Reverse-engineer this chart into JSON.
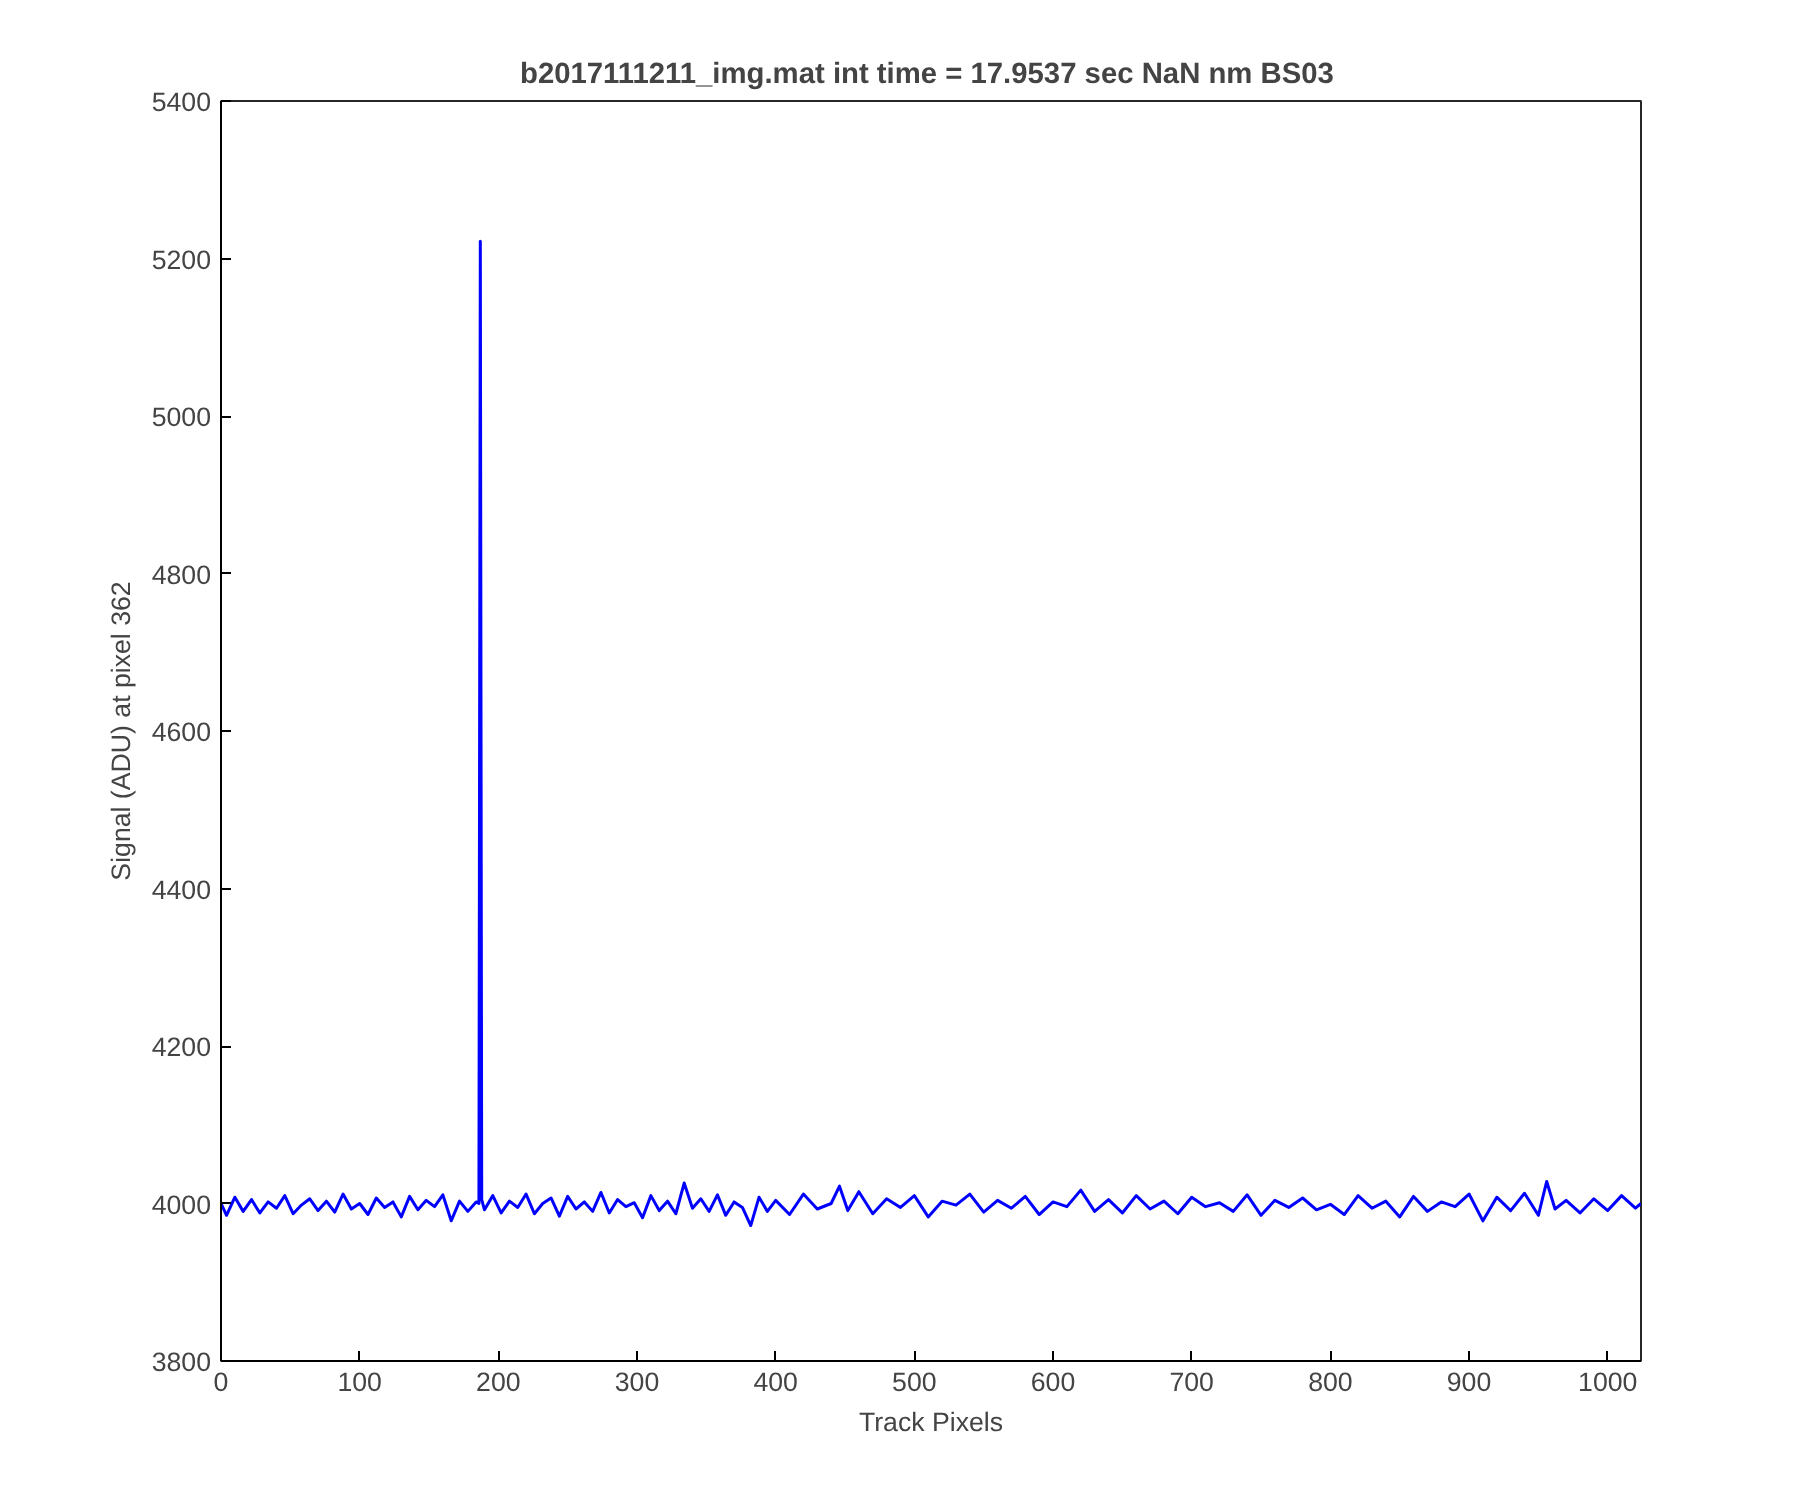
{
  "chart_data": {
    "type": "line",
    "title": "b2017111211_img.mat int time = 17.9537 sec  NaN nm BS03",
    "xlabel": "Track Pixels",
    "ylabel": "Signal (ADU) at pixel 362",
    "xlim": [
      0,
      1024
    ],
    "ylim": [
      3800,
      5400
    ],
    "xticks": [
      0,
      100,
      200,
      300,
      400,
      500,
      600,
      700,
      800,
      900,
      1000
    ],
    "yticks": [
      3800,
      4000,
      4200,
      4400,
      4600,
      4800,
      5000,
      5200,
      5400
    ],
    "grid": false,
    "series": [
      {
        "color": "#0000ff",
        "x": [
          0,
          4,
          10,
          16,
          22,
          28,
          34,
          40,
          46,
          52,
          58,
          64,
          70,
          76,
          82,
          88,
          94,
          100,
          106,
          112,
          118,
          124,
          130,
          136,
          142,
          148,
          154,
          160,
          166,
          172,
          178,
          184,
          186,
          187,
          188,
          190,
          196,
          202,
          208,
          214,
          220,
          226,
          232,
          238,
          244,
          250,
          256,
          262,
          268,
          274,
          280,
          286,
          292,
          298,
          304,
          310,
          316,
          322,
          328,
          334,
          340,
          346,
          352,
          358,
          364,
          370,
          376,
          382,
          388,
          394,
          400,
          410,
          420,
          430,
          440,
          446,
          452,
          460,
          470,
          480,
          490,
          500,
          510,
          520,
          530,
          540,
          550,
          560,
          570,
          580,
          590,
          600,
          610,
          620,
          630,
          640,
          650,
          660,
          670,
          680,
          690,
          700,
          710,
          720,
          730,
          740,
          750,
          760,
          770,
          780,
          790,
          800,
          810,
          820,
          830,
          840,
          850,
          860,
          870,
          880,
          890,
          900,
          910,
          920,
          930,
          940,
          950,
          956,
          962,
          970,
          980,
          990,
          1000,
          1010,
          1020,
          1024
        ],
        "values": [
          4000,
          3985,
          4008,
          3990,
          4005,
          3988,
          4002,
          3994,
          4010,
          3987,
          3998,
          4006,
          3991,
          4003,
          3989,
          4012,
          3993,
          4000,
          3986,
          4007,
          3995,
          4002,
          3983,
          4009,
          3992,
          4004,
          3996,
          4011,
          3978,
          4003,
          3990,
          4002,
          4000,
          5222,
          4005,
          3992,
          4010,
          3988,
          4003,
          3995,
          4012,
          3987,
          4000,
          4007,
          3984,
          4009,
          3993,
          4002,
          3990,
          4014,
          3988,
          4005,
          3996,
          4001,
          3982,
          4010,
          3991,
          4003,
          3987,
          4026,
          3994,
          4006,
          3990,
          4011,
          3985,
          4002,
          3995,
          3972,
          4008,
          3990,
          4004,
          3986,
          4012,
          3993,
          4000,
          4022,
          3991,
          4015,
          3987,
          4006,
          3995,
          4010,
          3983,
          4003,
          3998,
          4012,
          3989,
          4004,
          3994,
          4009,
          3986,
          4002,
          3996,
          4017,
          3990,
          4005,
          3988,
          4010,
          3993,
          4003,
          3987,
          4008,
          3996,
          4001,
          3990,
          4011,
          3985,
          4004,
          3995,
          4007,
          3992,
          3999,
          3986,
          4010,
          3994,
          4003,
          3983,
          4009,
          3990,
          4002,
          3996,
          4012,
          3978,
          4008,
          3991,
          4013,
          3985,
          4028,
          3993,
          4004,
          3988,
          4006,
          3991,
          4010,
          3994,
          4000
        ]
      }
    ]
  }
}
